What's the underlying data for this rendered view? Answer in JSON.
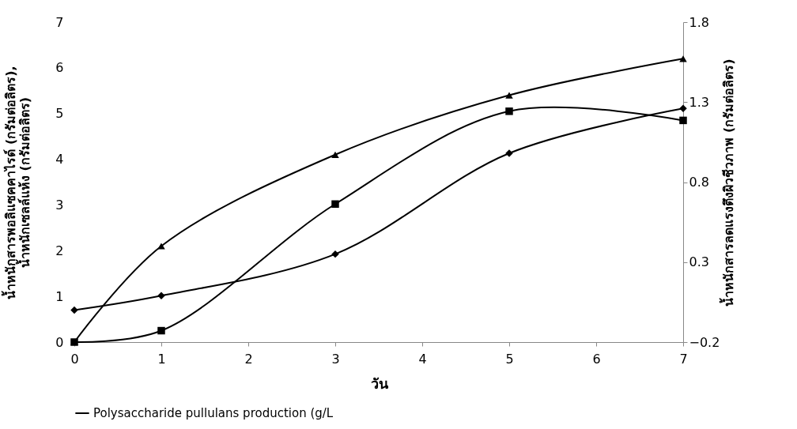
{
  "chart_data": {
    "type": "line",
    "xlabel": "วัน",
    "ylabel": "น้ำหนักสารพอลิแซคคาไรด์ (กรัมต่อลิตร),\nน้ำหนักเซลล์แห้ง (กรัมต่อลิตร)",
    "y2label": "น้ำหนักสารลดแรงตึงผิวชีวภาพ (กรัมต่อลิตร)",
    "x": [
      0,
      1,
      3,
      5,
      7
    ],
    "xlim": [
      0,
      7
    ],
    "xticks": [
      0,
      1,
      2,
      3,
      4,
      5,
      6,
      7
    ],
    "ylim": [
      0,
      7
    ],
    "yticks": [
      0,
      1,
      2,
      3,
      4,
      5,
      6,
      7
    ],
    "y2lim": [
      -0.2,
      1.8
    ],
    "y2ticks": [
      -0.2,
      0.3,
      0.8,
      1.3,
      1.8
    ],
    "grid": false,
    "legend": "bottom",
    "line_style": "solid",
    "series": [
      {
        "name": "Polysaccharide pullulans production (g/L",
        "color": "#000000",
        "marker": "square",
        "values": [
          0,
          0.25,
          3.02,
          5.05,
          4.85
        ]
      },
      {
        "color": "#000000",
        "marker": "triangle",
        "values": [
          0,
          2.1,
          4.1,
          5.4,
          6.2
        ]
      },
      {
        "color": "#000000",
        "marker": "diamond",
        "axis": "y2",
        "values": [
          0.0,
          0.09,
          0.35,
          0.98,
          1.26
        ]
      }
    ]
  }
}
